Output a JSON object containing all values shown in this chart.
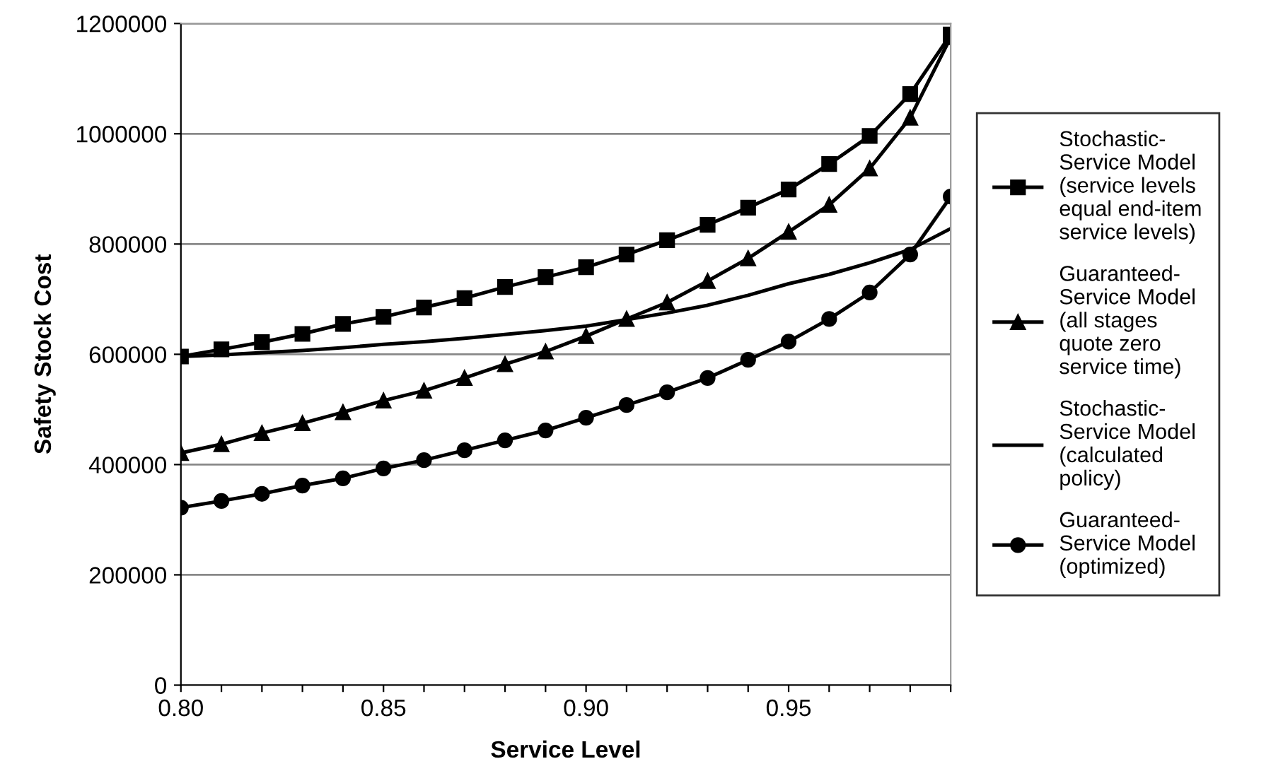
{
  "chart_data": {
    "type": "line",
    "xlabel": "Service Level",
    "ylabel": "Safety Stock Cost",
    "x": [
      0.8,
      0.81,
      0.82,
      0.83,
      0.84,
      0.85,
      0.86,
      0.87,
      0.88,
      0.89,
      0.9,
      0.91,
      0.92,
      0.93,
      0.94,
      0.95,
      0.96,
      0.97,
      0.98,
      0.99
    ],
    "series": [
      {
        "name": "Stochastic-Service Model (service levels equal end-item service levels)",
        "color": "#000000",
        "marker": "square",
        "values": [
          596000,
          609000,
          622000,
          637000,
          655000,
          668000,
          685000,
          702000,
          722000,
          740000,
          758000,
          781000,
          807000,
          835000,
          866000,
          899000,
          945000,
          996000,
          1072000,
          1180000
        ]
      },
      {
        "name": "Guaranteed-Service Model (all stages quote zero service time)",
        "color": "#000000",
        "marker": "triangle",
        "values": [
          421000,
          437000,
          457000,
          475000,
          495000,
          516000,
          534000,
          557000,
          582000,
          605000,
          633000,
          664000,
          694000,
          733000,
          774000,
          822000,
          871000,
          937000,
          1029000,
          1175000
        ]
      },
      {
        "name": "Stochastic-Service Model (calculated policy)",
        "color": "#000000",
        "marker": "none",
        "values": [
          596000,
          599000,
          603000,
          607000,
          612000,
          618000,
          623000,
          629000,
          636000,
          643000,
          651000,
          663000,
          675000,
          689000,
          707000,
          728000,
          745000,
          766000,
          790000,
          828000
        ]
      },
      {
        "name": "Guaranteed-Service Model (optimized)",
        "color": "#000000",
        "marker": "circle",
        "values": [
          322000,
          334000,
          347000,
          362000,
          375000,
          393000,
          408000,
          426000,
          444000,
          462000,
          485000,
          508000,
          531000,
          557000,
          590000,
          623000,
          664000,
          712000,
          781000,
          886000
        ]
      }
    ],
    "xlim": [
      0.8,
      0.99
    ],
    "xticks": [
      {
        "value": 0.8,
        "label": "0.80"
      },
      {
        "value": 0.81,
        "label": null
      },
      {
        "value": 0.82,
        "label": null
      },
      {
        "value": 0.83,
        "label": null
      },
      {
        "value": 0.84,
        "label": null
      },
      {
        "value": 0.85,
        "label": "0.85"
      },
      {
        "value": 0.86,
        "label": null
      },
      {
        "value": 0.87,
        "label": null
      },
      {
        "value": 0.88,
        "label": null
      },
      {
        "value": 0.89,
        "label": null
      },
      {
        "value": 0.9,
        "label": "0.90"
      },
      {
        "value": 0.91,
        "label": null
      },
      {
        "value": 0.92,
        "label": null
      },
      {
        "value": 0.93,
        "label": null
      },
      {
        "value": 0.94,
        "label": null
      },
      {
        "value": 0.95,
        "label": "0.95"
      },
      {
        "value": 0.96,
        "label": null
      },
      {
        "value": 0.97,
        "label": null
      },
      {
        "value": 0.98,
        "label": null
      },
      {
        "value": 0.99,
        "label": null
      }
    ],
    "ylim": [
      0,
      1200000
    ],
    "yticks": [
      0,
      200000,
      400000,
      600000,
      800000,
      1000000,
      1200000
    ],
    "grid": "y",
    "legend": "right",
    "line_style": "solid"
  }
}
